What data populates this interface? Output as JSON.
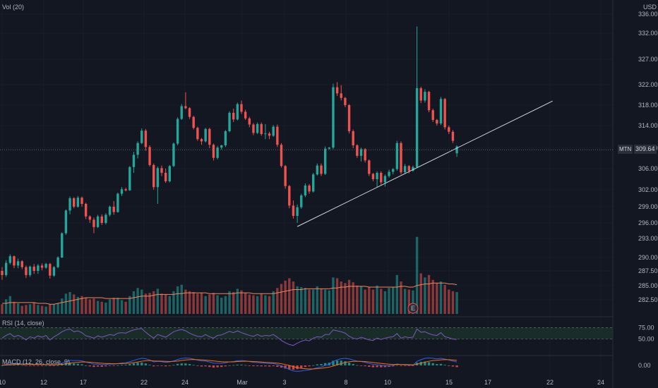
{
  "header": {
    "volume_label": "Vol (20)",
    "currency": "USD",
    "rsi_label": "RSI (14, close)",
    "macd_label": "MACD (12, 26, close, 9)",
    "earnings_marker": "E"
  },
  "symbol": "MTN",
  "last_price": "309.64",
  "colors": {
    "background": "#131722",
    "up": "#26a69a",
    "down": "#ef5350",
    "grid": "#1e222d",
    "text": "#b2b5be",
    "ma_line": "#f0855b",
    "rsi_line": "#7e57c2",
    "rsi_band": "#1f3b2c",
    "trendline": "#d1d4dc"
  },
  "price_axis": [
    "336.00",
    "332.00",
    "327.00",
    "322.00",
    "318.00",
    "314.00",
    "310.00",
    "306.00",
    "302.00",
    "299.00",
    "296.00",
    "293.00",
    "290.00",
    "287.50",
    "285.00",
    "282.50"
  ],
  "rsi_axis": [
    "75.00",
    "50.00"
  ],
  "macd_axis": [
    "0.00"
  ],
  "date_axis": [
    "10",
    "12",
    "17",
    "22",
    "24",
    "Mar",
    "3",
    "8",
    "10",
    "15",
    "17",
    "22",
    "24"
  ],
  "chart_data": {
    "type": "candlestick",
    "interval": "intraday (approx 4 bars per session)",
    "ylim": [
      280,
      337
    ],
    "candles": [
      [
        287.5,
        288.2,
        286.0,
        286.8
      ],
      [
        286.8,
        289.5,
        286.5,
        289.0
      ],
      [
        289.0,
        290.5,
        288.7,
        290.2
      ],
      [
        290.2,
        290.3,
        288.0,
        288.5
      ],
      [
        288.5,
        289.8,
        288.0,
        289.3
      ],
      [
        289.3,
        289.5,
        287.8,
        288.2
      ],
      [
        288.2,
        288.5,
        286.3,
        286.8
      ],
      [
        286.8,
        288.5,
        286.5,
        288.3
      ],
      [
        288.3,
        288.8,
        287.0,
        287.5
      ],
      [
        287.5,
        288.8,
        287.0,
        288.5
      ],
      [
        288.5,
        288.9,
        287.6,
        288.1
      ],
      [
        288.1,
        289.0,
        287.9,
        288.8
      ],
      [
        288.8,
        289.0,
        286.2,
        286.7
      ],
      [
        286.7,
        288.4,
        286.5,
        288.2
      ],
      [
        288.2,
        290.2,
        288.0,
        290.0
      ],
      [
        290.0,
        294.2,
        289.9,
        294.0
      ],
      [
        294.0,
        298.5,
        293.7,
        298.3
      ],
      [
        298.3,
        300.8,
        297.6,
        300.5
      ],
      [
        300.5,
        300.7,
        298.7,
        299.0
      ],
      [
        299.0,
        300.9,
        298.8,
        300.6
      ],
      [
        300.6,
        300.8,
        299.0,
        299.5
      ],
      [
        299.5,
        299.7,
        296.7,
        297.2
      ],
      [
        297.2,
        297.4,
        296.0,
        296.6
      ],
      [
        296.6,
        297.0,
        294.0,
        295.2
      ],
      [
        295.2,
        297.5,
        295.0,
        297.2
      ],
      [
        297.2,
        297.6,
        295.6,
        296.0
      ],
      [
        296.0,
        297.8,
        295.7,
        297.5
      ],
      [
        297.5,
        299.2,
        297.2,
        299.0
      ],
      [
        299.0,
        300.0,
        297.5,
        298.0
      ],
      [
        298.0,
        301.5,
        297.9,
        301.3
      ],
      [
        301.3,
        302.5,
        300.9,
        302.1
      ],
      [
        302.1,
        302.4,
        301.7,
        301.9
      ],
      [
        301.9,
        306.5,
        301.8,
        306.3
      ],
      [
        306.3,
        309.3,
        305.2,
        308.7
      ],
      [
        308.7,
        311.2,
        308.0,
        310.9
      ],
      [
        310.9,
        313.5,
        310.7,
        313.1
      ],
      [
        313.1,
        313.4,
        309.5,
        310.2
      ],
      [
        310.2,
        310.5,
        306.4,
        306.7
      ],
      [
        306.7,
        307.0,
        302.0,
        302.5
      ],
      [
        302.5,
        306.4,
        299.5,
        306.1
      ],
      [
        306.1,
        306.6,
        304.6,
        305.2
      ],
      [
        305.2,
        306.0,
        303.3,
        303.6
      ],
      [
        303.6,
        306.7,
        303.4,
        306.5
      ],
      [
        306.5,
        311.0,
        306.3,
        310.8
      ],
      [
        310.8,
        315.6,
        310.5,
        315.3
      ],
      [
        315.3,
        318.2,
        315.1,
        317.8
      ],
      [
        317.8,
        320.5,
        317.2,
        317.4
      ],
      [
        317.4,
        317.6,
        315.3,
        315.7
      ],
      [
        315.7,
        315.9,
        313.3,
        313.6
      ],
      [
        313.6,
        313.8,
        311.3,
        311.6
      ],
      [
        311.6,
        311.8,
        310.6,
        311.2
      ],
      [
        311.2,
        313.6,
        311.0,
        313.4
      ],
      [
        313.4,
        313.6,
        310.0,
        310.6
      ],
      [
        310.6,
        310.8,
        307.6,
        308.1
      ],
      [
        308.1,
        310.4,
        307.8,
        310.1
      ],
      [
        310.1,
        310.6,
        309.7,
        310.5
      ],
      [
        310.5,
        313.2,
        310.2,
        313.0
      ],
      [
        313.0,
        316.8,
        312.8,
        316.5
      ],
      [
        316.5,
        317.3,
        314.7,
        315.2
      ],
      [
        315.2,
        318.5,
        315.0,
        318.2
      ],
      [
        318.2,
        318.9,
        316.3,
        316.7
      ],
      [
        316.7,
        317.1,
        315.1,
        315.4
      ],
      [
        315.4,
        315.7,
        313.7,
        314.2
      ],
      [
        314.2,
        314.5,
        312.3,
        312.7
      ],
      [
        312.7,
        314.6,
        312.5,
        314.3
      ],
      [
        314.3,
        314.6,
        312.2,
        312.5
      ],
      [
        312.5,
        314.3,
        311.6,
        312.6
      ],
      [
        312.6,
        312.9,
        311.6,
        312.2
      ],
      [
        312.2,
        314.1,
        312.0,
        313.8
      ],
      [
        313.8,
        314.2,
        310.2,
        310.6
      ],
      [
        310.6,
        310.9,
        306.2,
        306.5
      ],
      [
        306.5,
        306.7,
        302.2,
        302.7
      ],
      [
        302.7,
        302.9,
        298.7,
        299.2
      ],
      [
        299.2,
        300.1,
        296.8,
        297.3
      ],
      [
        297.3,
        299.4,
        296.0,
        298.9
      ],
      [
        298.9,
        301.3,
        298.6,
        301.0
      ],
      [
        301.0,
        303.2,
        300.7,
        302.8
      ],
      [
        302.8,
        303.1,
        301.3,
        301.7
      ],
      [
        301.7,
        305.2,
        301.5,
        304.9
      ],
      [
        304.9,
        307.0,
        304.7,
        306.6
      ],
      [
        306.6,
        307.0,
        304.6,
        305.0
      ],
      [
        305.0,
        310.3,
        304.8,
        309.9
      ],
      [
        309.9,
        310.2,
        309.7,
        310.1
      ],
      [
        310.1,
        322.2,
        309.8,
        321.5
      ],
      [
        321.5,
        322.5,
        319.8,
        320.3
      ],
      [
        320.3,
        321.9,
        318.9,
        319.4
      ],
      [
        319.4,
        319.6,
        317.6,
        318.0
      ],
      [
        318.0,
        318.2,
        312.6,
        313.0
      ],
      [
        313.0,
        313.3,
        310.0,
        310.5
      ],
      [
        310.5,
        310.7,
        308.1,
        308.5
      ],
      [
        308.5,
        310.1,
        307.4,
        309.8
      ],
      [
        309.8,
        310.0,
        307.2,
        307.6
      ],
      [
        307.6,
        307.8,
        304.6,
        305.0
      ],
      [
        305.0,
        305.2,
        303.6,
        304.0
      ],
      [
        304.0,
        305.5,
        302.4,
        305.2
      ],
      [
        305.2,
        305.5,
        302.9,
        303.4
      ],
      [
        303.4,
        304.9,
        302.6,
        304.6
      ],
      [
        304.6,
        305.8,
        304.3,
        305.4
      ],
      [
        305.4,
        306.1,
        304.9,
        305.9
      ],
      [
        305.9,
        311.3,
        305.6,
        310.9
      ],
      [
        310.9,
        311.2,
        304.9,
        305.3
      ],
      [
        305.3,
        306.9,
        305.1,
        306.5
      ],
      [
        306.5,
        306.7,
        305.1,
        305.6
      ],
      [
        305.6,
        306.6,
        305.4,
        306.3
      ],
      [
        306.3,
        333.4,
        306.1,
        321.3
      ],
      [
        321.3,
        321.6,
        318.4,
        318.9
      ],
      [
        318.9,
        321.1,
        318.5,
        320.6
      ],
      [
        320.6,
        320.8,
        316.6,
        317.0
      ],
      [
        317.0,
        317.3,
        314.7,
        315.1
      ],
      [
        315.1,
        315.3,
        314.0,
        314.4
      ],
      [
        314.4,
        319.6,
        314.1,
        319.2
      ],
      [
        319.2,
        319.4,
        313.3,
        313.7
      ],
      [
        313.7,
        314.0,
        312.5,
        312.9
      ],
      [
        312.9,
        313.2,
        310.9,
        311.3
      ],
      [
        309.0,
        310.5,
        308.3,
        310.3
      ]
    ],
    "volume_scale_max": 100,
    "volumes": [
      12,
      18,
      22,
      15,
      13,
      10,
      11,
      12,
      14,
      11,
      10,
      9,
      12,
      12,
      13,
      19,
      25,
      27,
      24,
      21,
      22,
      20,
      18,
      19,
      16,
      15,
      14,
      18,
      20,
      20,
      17,
      15,
      22,
      28,
      32,
      30,
      25,
      26,
      28,
      31,
      25,
      24,
      22,
      28,
      34,
      36,
      30,
      28,
      27,
      25,
      26,
      22,
      24,
      26,
      23,
      20,
      22,
      28,
      27,
      31,
      29,
      26,
      24,
      23,
      22,
      25,
      23,
      22,
      28,
      32,
      37,
      41,
      44,
      40,
      34,
      33,
      32,
      30,
      30,
      34,
      31,
      30,
      29,
      45,
      44,
      40,
      38,
      42,
      39,
      35,
      34,
      30,
      33,
      30,
      35,
      31,
      28,
      32,
      33,
      48,
      40,
      31,
      30,
      29,
      95,
      50,
      45,
      48,
      42,
      38,
      40,
      36,
      30,
      28,
      27
    ],
    "ma_line": [
      13,
      13,
      14,
      14,
      14,
      14,
      14,
      14,
      14,
      13,
      13,
      13,
      12,
      12,
      13,
      14,
      15,
      16,
      17,
      18,
      19,
      20,
      20,
      20,
      20,
      20,
      19,
      19,
      19,
      19,
      19,
      19,
      19,
      20,
      21,
      22,
      22,
      22,
      23,
      24,
      24,
      24,
      24,
      24,
      25,
      25,
      26,
      26,
      26,
      26,
      26,
      26,
      25,
      25,
      25,
      25,
      25,
      25,
      25,
      26,
      26,
      26,
      26,
      25,
      25,
      25,
      25,
      25,
      25,
      26,
      27,
      28,
      29,
      30,
      30,
      30,
      31,
      31,
      31,
      31,
      31,
      31,
      31,
      32,
      32,
      33,
      33,
      34,
      34,
      34,
      34,
      34,
      33,
      33,
      33,
      33,
      33,
      33,
      33,
      33,
      34,
      34,
      33,
      33,
      35,
      36,
      37,
      37,
      38,
      38,
      38,
      38,
      37,
      37,
      36
    ],
    "rsi": [
      52,
      58,
      62,
      55,
      58,
      54,
      48,
      55,
      52,
      57,
      54,
      58,
      48,
      55,
      60,
      66,
      70,
      72,
      66,
      68,
      64,
      57,
      55,
      52,
      57,
      54,
      57,
      60,
      58,
      63,
      64,
      63,
      67,
      70,
      72,
      73,
      65,
      58,
      52,
      60,
      57,
      54,
      60,
      66,
      69,
      71,
      68,
      63,
      59,
      56,
      55,
      60,
      55,
      52,
      58,
      59,
      63,
      67,
      64,
      68,
      64,
      61,
      58,
      56,
      60,
      56,
      58,
      57,
      60,
      54,
      47,
      42,
      38,
      36,
      41,
      45,
      48,
      46,
      52,
      55,
      54,
      60,
      60,
      70,
      68,
      66,
      63,
      56,
      52,
      50,
      54,
      51,
      48,
      47,
      52,
      49,
      52,
      54,
      55,
      62,
      52,
      55,
      53,
      54,
      72,
      65,
      66,
      62,
      59,
      58,
      64,
      55,
      53,
      50,
      49
    ],
    "macd": [
      0.2,
      0.6,
      1.0,
      1.1,
      1.2,
      1.0,
      0.6,
      0.6,
      0.5,
      0.6,
      0.5,
      0.6,
      0.2,
      0.3,
      0.6,
      1.4,
      2.4,
      3.2,
      3.1,
      3.1,
      2.9,
      2.2,
      1.5,
      0.8,
      0.8,
      0.5,
      0.6,
      0.9,
      0.8,
      1.2,
      1.6,
      1.7,
      2.4,
      3.2,
      4.0,
      4.6,
      4.3,
      3.5,
      2.3,
      2.6,
      2.4,
      2.0,
      2.2,
      2.9,
      3.8,
      4.5,
      4.8,
      4.6,
      4.1,
      3.4,
      2.9,
      2.8,
      2.2,
      1.5,
      1.4,
      1.4,
      1.7,
      2.3,
      2.5,
      3.0,
      3.1,
      2.9,
      2.5,
      2.0,
      1.9,
      1.6,
      1.4,
      1.2,
      1.2,
      0.6,
      -0.3,
      -1.4,
      -2.6,
      -3.6,
      -3.8,
      -3.6,
      -3.1,
      -2.9,
      -2.2,
      -1.4,
      -1.0,
      0.0,
      0.7,
      2.6,
      3.6,
      4.3,
      4.6,
      4.2,
      3.5,
      2.8,
      2.5,
      2.0,
      1.3,
      0.7,
      0.5,
      0.1,
      -0.1,
      -0.1,
      0.0,
      0.9,
      0.5,
      0.4,
      0.2,
      0.1,
      2.6,
      3.7,
      4.6,
      4.8,
      4.6,
      4.2,
      4.6,
      4.1,
      3.5,
      2.8,
      2.2
    ],
    "macd_signal": [
      0.1,
      0.2,
      0.4,
      0.5,
      0.7,
      0.8,
      0.8,
      0.7,
      0.7,
      0.7,
      0.6,
      0.6,
      0.5,
      0.5,
      0.5,
      0.7,
      1.0,
      1.5,
      1.8,
      2.0,
      2.2,
      2.2,
      2.1,
      1.8,
      1.6,
      1.4,
      1.2,
      1.2,
      1.1,
      1.1,
      1.2,
      1.3,
      1.5,
      1.8,
      2.2,
      2.7,
      3.0,
      3.1,
      2.9,
      2.8,
      2.7,
      2.6,
      2.5,
      2.6,
      2.8,
      3.2,
      3.5,
      3.7,
      3.8,
      3.7,
      3.6,
      3.4,
      3.2,
      2.9,
      2.6,
      2.4,
      2.3,
      2.3,
      2.3,
      2.5,
      2.6,
      2.7,
      2.6,
      2.5,
      2.4,
      2.2,
      2.0,
      1.9,
      1.7,
      1.5,
      1.1,
      0.6,
      -0.0,
      -0.8,
      -1.4,
      -1.9,
      -2.1,
      -2.3,
      -2.3,
      -2.1,
      -1.9,
      -1.5,
      -1.1,
      -0.4,
      0.4,
      1.2,
      1.9,
      2.4,
      2.6,
      2.6,
      2.6,
      2.5,
      2.2,
      1.9,
      1.6,
      1.3,
      1.0,
      0.8,
      0.6,
      0.7,
      0.6,
      0.6,
      0.5,
      0.4,
      0.8,
      1.4,
      2.1,
      2.7,
      3.1,
      3.3,
      3.6,
      3.7,
      3.7,
      3.5,
      3.3
    ],
    "trendline": {
      "from": {
        "bar": 74,
        "price": 295.3
      },
      "to": {
        "bar": 138,
        "price": 318.8
      }
    },
    "last_price": 309.64,
    "earnings_bar": 103
  }
}
